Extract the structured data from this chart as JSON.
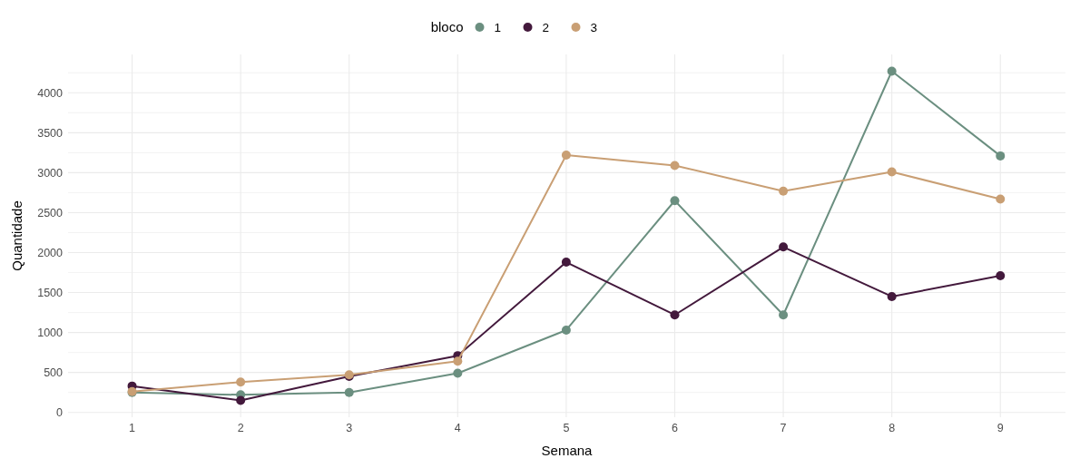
{
  "chart_data": {
    "type": "line",
    "xlabel": "Semana",
    "ylabel": "Quantidade",
    "legend_title": "bloco",
    "legend": "top",
    "grid": true,
    "marker": "circle",
    "line_style": "solid",
    "x": [
      1,
      2,
      3,
      4,
      5,
      6,
      7,
      8,
      9
    ],
    "xlim": [
      0.41,
      9.6
    ],
    "xticks": [
      1,
      2,
      3,
      4,
      5,
      6,
      7,
      8,
      9
    ],
    "ylim": [
      -60,
      4480
    ],
    "yticks": [
      0,
      500,
      1000,
      1500,
      2000,
      2500,
      3000,
      3500,
      4000
    ],
    "series": [
      {
        "name": "1",
        "color": "#6b8f80",
        "values": [
          250,
          220,
          250,
          490,
          1030,
          2650,
          1220,
          4270,
          3210
        ]
      },
      {
        "name": "2",
        "color": "#43193c",
        "values": [
          330,
          150,
          450,
          710,
          1880,
          1220,
          2070,
          1450,
          1710
        ]
      },
      {
        "name": "3",
        "color": "#c99f74",
        "values": [
          260,
          380,
          470,
          640,
          3220,
          3090,
          2770,
          3010,
          2670
        ]
      }
    ]
  }
}
